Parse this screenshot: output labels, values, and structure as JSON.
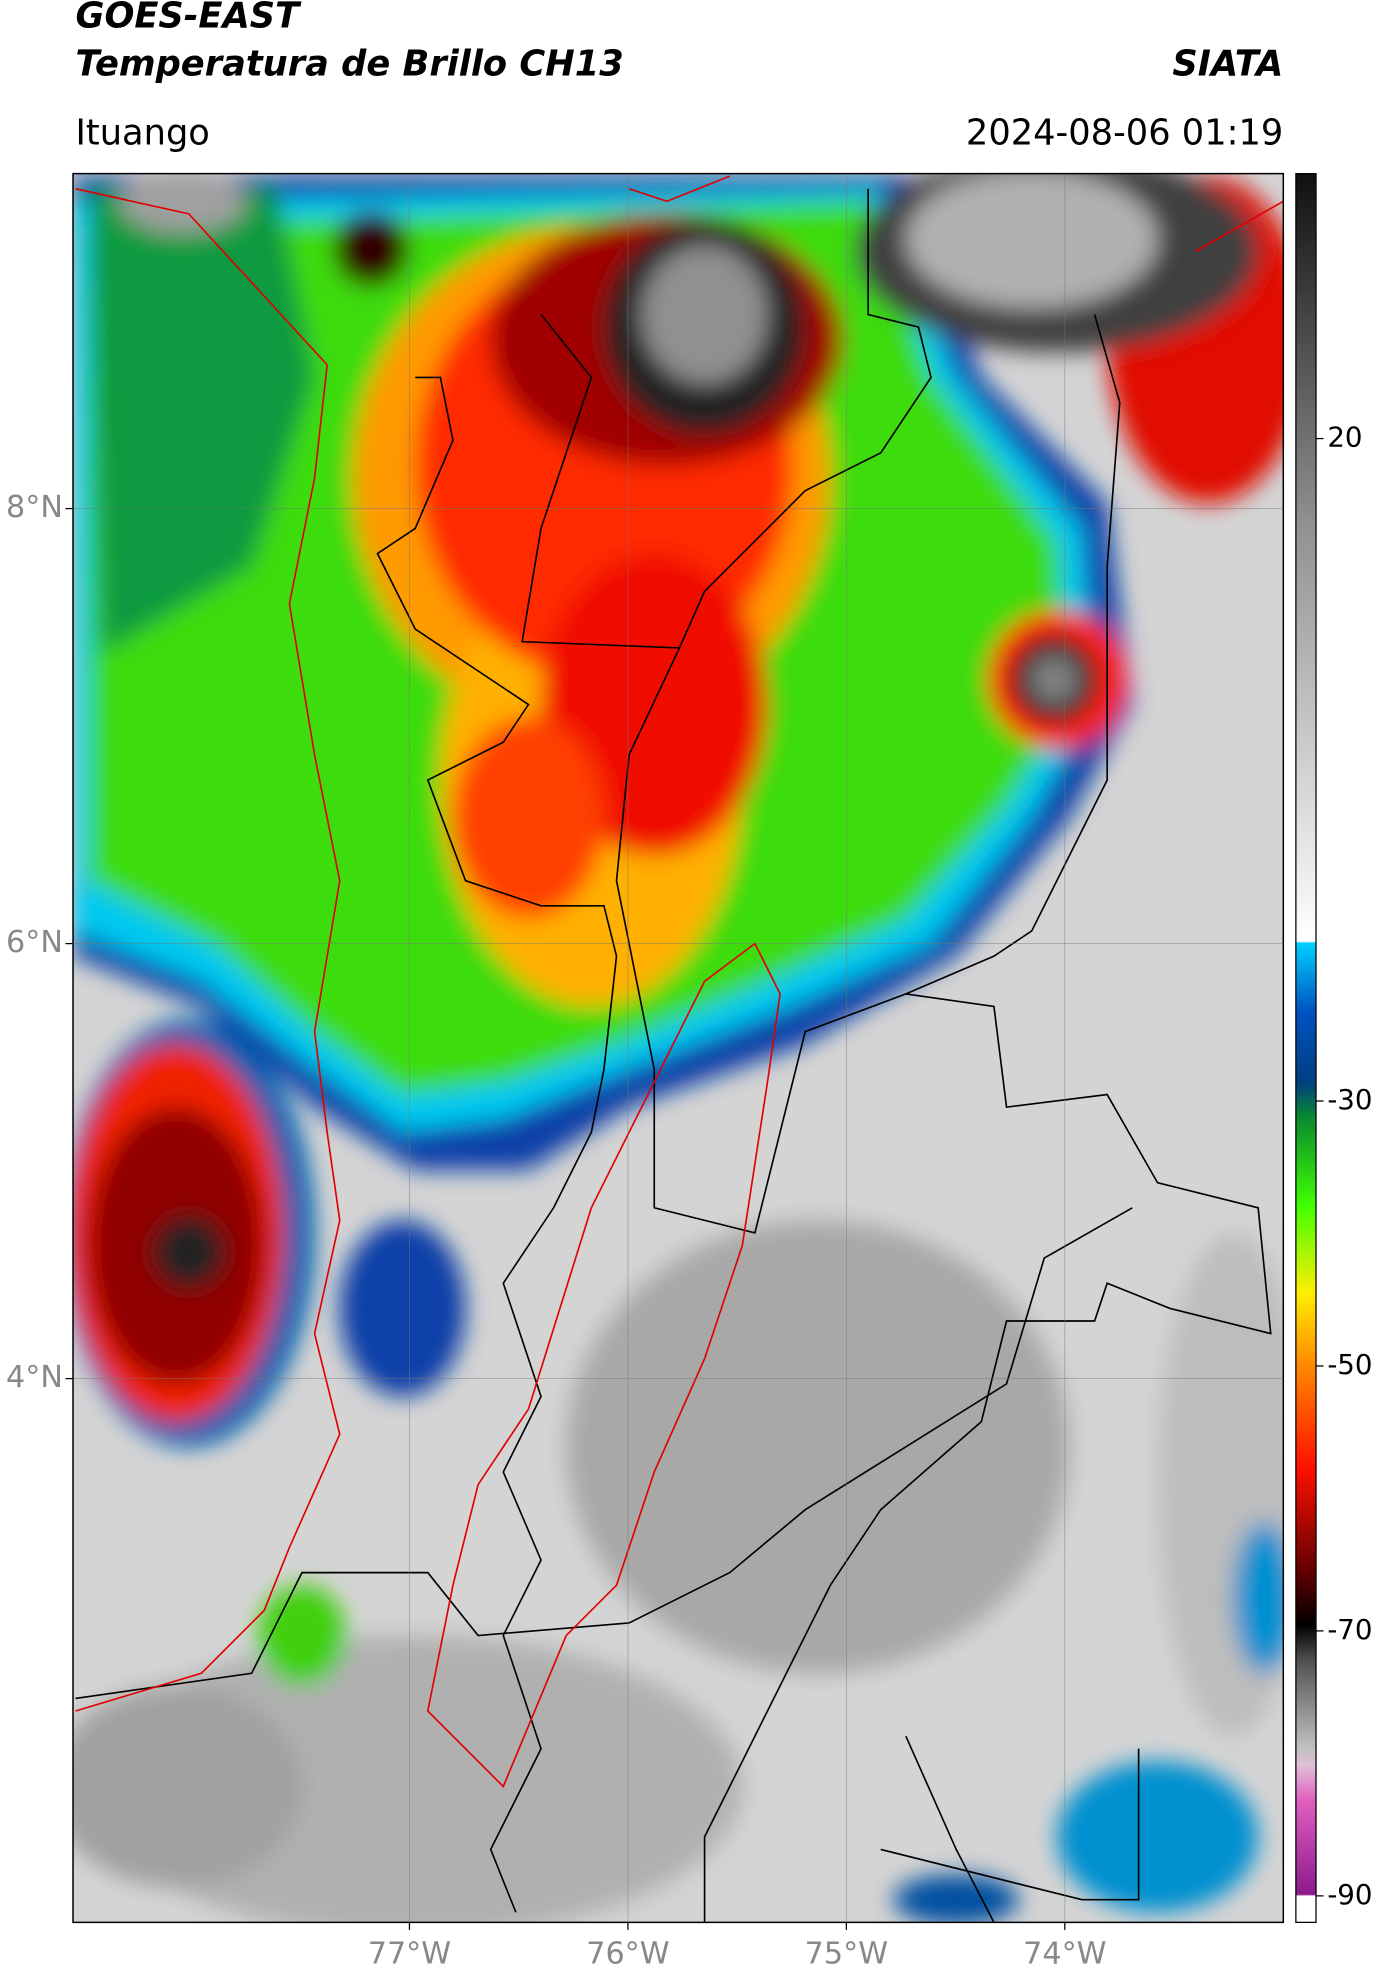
{
  "header": {
    "title": "GOES-EAST",
    "subtitle": "Temperatura de Brillo CH13",
    "org": "SIATA",
    "location": "Ituango",
    "datetime": "2024-08-06 01:19"
  },
  "map": {
    "lon_range": [
      -78.54,
      -73.0
    ],
    "lat_range": [
      1.5,
      9.54
    ],
    "lon_ticks": [
      {
        "value": -77,
        "label": "77°W"
      },
      {
        "value": -76,
        "label": "76°W"
      },
      {
        "value": -75,
        "label": "75°W"
      },
      {
        "value": -74,
        "label": "74°W"
      }
    ],
    "lat_ticks": [
      {
        "value": 8,
        "label": "8°N"
      },
      {
        "value": 6,
        "label": "6°N"
      },
      {
        "value": 4,
        "label": "4°N"
      }
    ]
  },
  "colorbar": {
    "range": [
      -92,
      40
    ],
    "ticks": [
      20,
      -30,
      -50,
      -70,
      -90
    ]
  }
}
